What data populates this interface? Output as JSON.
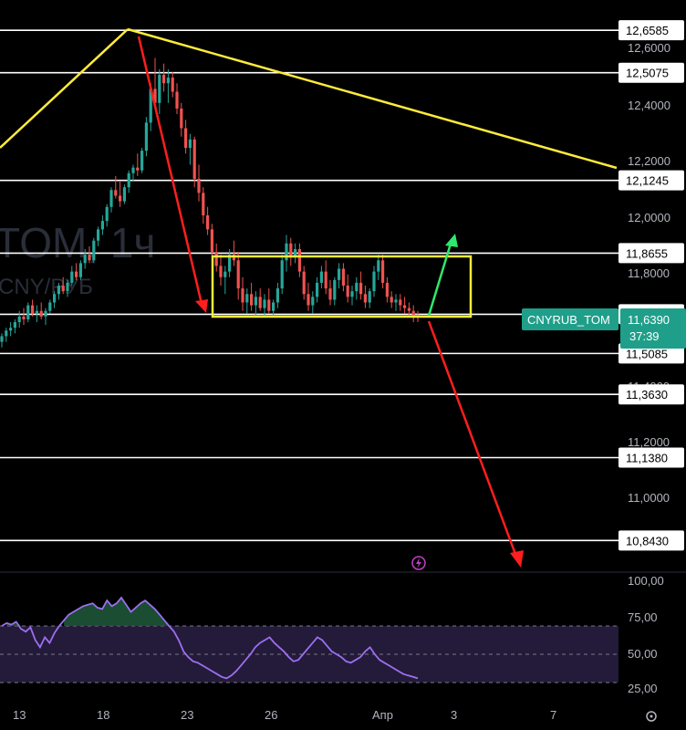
{
  "chart_data": {
    "type": "candlestick",
    "symbol": "CNYRUB_TOM",
    "watermark": {
      "symbol": "TOM, 1ч",
      "subtitle": "CNY/РУБ"
    },
    "current_price": "11,6390",
    "countdown": "37:39",
    "y_ticks": [
      "12,6000",
      "12,4000",
      "12,2000",
      "12,0000",
      "11,8000",
      "11,4000",
      "11,2000",
      "11,0000"
    ],
    "x_ticks": [
      "13",
      "18",
      "23",
      "26",
      "Апр",
      "3",
      "7"
    ],
    "levels": [
      {
        "value": 12.6585,
        "label": "12,6585"
      },
      {
        "value": 12.5075,
        "label": "12,5075"
      },
      {
        "value": 12.1245,
        "label": "12,1245"
      },
      {
        "value": 11.8655,
        "label": "11,8655"
      },
      {
        "value": 11.648,
        "label": "11,6480"
      },
      {
        "value": 11.5085,
        "label": "11,5085"
      },
      {
        "value": 11.363,
        "label": "11,3630"
      },
      {
        "value": 11.138,
        "label": "11,1380"
      },
      {
        "value": 10.843,
        "label": "10,8430"
      }
    ],
    "rsi": {
      "ticks": [
        "100,00",
        "75,00",
        "50,00",
        "25,00"
      ],
      "upper_band": 70,
      "lower_band": 30,
      "values": [
        70,
        72,
        71,
        73,
        68,
        66,
        69,
        60,
        55,
        62,
        58,
        65,
        70,
        74,
        78,
        80,
        82,
        84,
        85,
        86,
        83,
        82,
        88,
        84,
        86,
        90,
        85,
        80,
        83,
        86,
        88,
        85,
        82,
        78,
        74,
        70,
        66,
        60,
        52,
        48,
        45,
        44,
        42,
        40,
        38,
        36,
        34,
        33,
        35,
        38,
        42,
        46,
        50,
        55,
        58,
        60,
        62,
        58,
        55,
        52,
        48,
        45,
        46,
        50,
        54,
        58,
        62,
        60,
        56,
        52,
        50,
        48,
        45,
        44,
        46,
        48,
        52,
        55,
        50,
        46,
        44,
        42,
        40,
        38,
        36,
        35,
        34,
        33
      ]
    },
    "annotations": [
      {
        "type": "trendline",
        "color": "#ffeb3b",
        "from": {
          "x": "11",
          "y": 12.2
        },
        "to": {
          "x": "20",
          "y": 12.6585
        }
      },
      {
        "type": "trendline",
        "color": "#ffeb3b",
        "from": {
          "x": "20",
          "y": 12.6585
        },
        "to": {
          "x": "8",
          "y": 12.17
        }
      },
      {
        "type": "arrow",
        "color": "#ff1e1e",
        "from": {
          "x": "20",
          "y": 12.6585
        },
        "to": {
          "x": "23",
          "y": 11.648
        }
      },
      {
        "type": "rectangle",
        "color": "#ffeb3b",
        "x_from": "24",
        "x_to": "Апр 2",
        "y_from": 11.648,
        "y_to": 11.8655
      },
      {
        "type": "arrow",
        "color": "#2ee86b",
        "from": {
          "x": "Апр 1",
          "y": 11.648
        },
        "to": {
          "x": "Апр 2",
          "y": 11.84
        }
      },
      {
        "type": "arrow",
        "color": "#ff1e1e",
        "from": {
          "x": "Апр 1",
          "y": 11.648
        },
        "to": {
          "x": "Апр 4",
          "y": 10.82
        }
      }
    ],
    "candles": [
      [
        11.55,
        11.58,
        11.53,
        11.57
      ],
      [
        11.57,
        11.6,
        11.55,
        11.59
      ],
      [
        11.59,
        11.62,
        11.57,
        11.6
      ],
      [
        11.6,
        11.63,
        11.58,
        11.62
      ],
      [
        11.62,
        11.66,
        11.6,
        11.64
      ],
      [
        11.64,
        11.67,
        11.61,
        11.63
      ],
      [
        11.63,
        11.69,
        11.62,
        11.68
      ],
      [
        11.68,
        11.7,
        11.64,
        11.65
      ],
      [
        11.65,
        11.68,
        11.62,
        11.66
      ],
      [
        11.66,
        11.69,
        11.63,
        11.64
      ],
      [
        11.64,
        11.67,
        11.61,
        11.66
      ],
      [
        11.66,
        11.7,
        11.65,
        11.69
      ],
      [
        11.69,
        11.73,
        11.67,
        11.72
      ],
      [
        11.72,
        11.76,
        11.7,
        11.75
      ],
      [
        11.75,
        11.78,
        11.72,
        11.73
      ],
      [
        11.73,
        11.77,
        11.71,
        11.76
      ],
      [
        11.76,
        11.82,
        11.75,
        11.8
      ],
      [
        11.8,
        11.83,
        11.77,
        11.78
      ],
      [
        11.78,
        11.84,
        11.77,
        11.83
      ],
      [
        11.83,
        11.88,
        11.81,
        11.86
      ],
      [
        11.86,
        11.89,
        11.83,
        11.84
      ],
      [
        11.84,
        11.92,
        11.83,
        11.91
      ],
      [
        11.91,
        11.96,
        11.89,
        11.95
      ],
      [
        11.95,
        12.0,
        11.93,
        11.98
      ],
      [
        11.98,
        12.04,
        11.96,
        12.03
      ],
      [
        12.03,
        12.1,
        12.01,
        12.09
      ],
      [
        12.09,
        12.14,
        12.06,
        12.07
      ],
      [
        12.07,
        12.12,
        12.03,
        12.05
      ],
      [
        12.05,
        12.11,
        12.04,
        12.1
      ],
      [
        12.1,
        12.16,
        12.08,
        12.15
      ],
      [
        12.15,
        12.18,
        12.12,
        12.17
      ],
      [
        12.17,
        12.22,
        12.14,
        12.16
      ],
      [
        12.16,
        12.24,
        12.15,
        12.23
      ],
      [
        12.23,
        12.35,
        12.21,
        12.33
      ],
      [
        12.33,
        12.47,
        12.3,
        12.45
      ],
      [
        12.45,
        12.56,
        12.38,
        12.4
      ],
      [
        12.4,
        12.52,
        12.36,
        12.5
      ],
      [
        12.5,
        12.54,
        12.44,
        12.47
      ],
      [
        12.47,
        12.52,
        12.4,
        12.49
      ],
      [
        12.49,
        12.51,
        12.42,
        12.44
      ],
      [
        12.44,
        12.47,
        12.36,
        12.38
      ],
      [
        12.38,
        12.4,
        12.28,
        12.31
      ],
      [
        12.31,
        12.34,
        12.22,
        12.24
      ],
      [
        12.24,
        12.29,
        12.18,
        12.27
      ],
      [
        12.27,
        12.28,
        12.1,
        12.13
      ],
      [
        12.13,
        12.18,
        12.05,
        12.08
      ],
      [
        12.08,
        12.1,
        11.97,
        12.0
      ],
      [
        12.0,
        12.03,
        11.93,
        11.95
      ],
      [
        11.95,
        11.97,
        11.85,
        11.87
      ],
      [
        11.87,
        11.9,
        11.8,
        11.82
      ],
      [
        11.82,
        11.86,
        11.75,
        11.78
      ],
      [
        11.78,
        11.82,
        11.72,
        11.8
      ],
      [
        11.8,
        11.88,
        11.78,
        11.86
      ],
      [
        11.86,
        11.91,
        11.82,
        11.84
      ],
      [
        11.84,
        11.87,
        11.7,
        11.74
      ],
      [
        11.74,
        11.78,
        11.66,
        11.69
      ],
      [
        11.69,
        11.74,
        11.65,
        11.72
      ],
      [
        11.72,
        11.76,
        11.66,
        11.68
      ],
      [
        11.68,
        11.73,
        11.64,
        11.71
      ],
      [
        11.71,
        11.74,
        11.66,
        11.67
      ],
      [
        11.67,
        11.72,
        11.64,
        11.7
      ],
      [
        11.7,
        11.74,
        11.65,
        11.66
      ],
      [
        11.66,
        11.7,
        11.64,
        11.69
      ],
      [
        11.69,
        11.76,
        11.67,
        11.74
      ],
      [
        11.74,
        11.86,
        11.72,
        11.84
      ],
      [
        11.84,
        11.93,
        11.8,
        11.9
      ],
      [
        11.9,
        11.92,
        11.82,
        11.85
      ],
      [
        11.85,
        11.9,
        11.83,
        11.88
      ],
      [
        11.88,
        11.9,
        11.78,
        11.8
      ],
      [
        11.8,
        11.82,
        11.7,
        11.72
      ],
      [
        11.72,
        11.76,
        11.66,
        11.68
      ],
      [
        11.68,
        11.73,
        11.65,
        11.71
      ],
      [
        11.71,
        11.78,
        11.69,
        11.76
      ],
      [
        11.76,
        11.82,
        11.74,
        11.8
      ],
      [
        11.8,
        11.84,
        11.72,
        11.74
      ],
      [
        11.74,
        11.77,
        11.68,
        11.7
      ],
      [
        11.7,
        11.78,
        11.68,
        11.77
      ],
      [
        11.77,
        11.83,
        11.74,
        11.81
      ],
      [
        11.81,
        11.83,
        11.73,
        11.75
      ],
      [
        11.75,
        11.79,
        11.69,
        11.71
      ],
      [
        11.71,
        11.75,
        11.68,
        11.73
      ],
      [
        11.73,
        11.78,
        11.7,
        11.76
      ],
      [
        11.76,
        11.8,
        11.7,
        11.72
      ],
      [
        11.72,
        11.75,
        11.67,
        11.69
      ],
      [
        11.69,
        11.74,
        11.67,
        11.73
      ],
      [
        11.73,
        11.82,
        11.71,
        11.8
      ],
      [
        11.8,
        11.86,
        11.77,
        11.84
      ],
      [
        11.84,
        11.86,
        11.74,
        11.76
      ],
      [
        11.76,
        11.78,
        11.69,
        11.71
      ],
      [
        11.71,
        11.73,
        11.67,
        11.69
      ],
      [
        11.69,
        11.72,
        11.66,
        11.7
      ],
      [
        11.7,
        11.72,
        11.66,
        11.68
      ],
      [
        11.68,
        11.71,
        11.65,
        11.67
      ],
      [
        11.67,
        11.69,
        11.64,
        11.66
      ],
      [
        11.66,
        11.68,
        11.62,
        11.64
      ],
      [
        11.64,
        11.66,
        11.62,
        11.639
      ]
    ]
  }
}
